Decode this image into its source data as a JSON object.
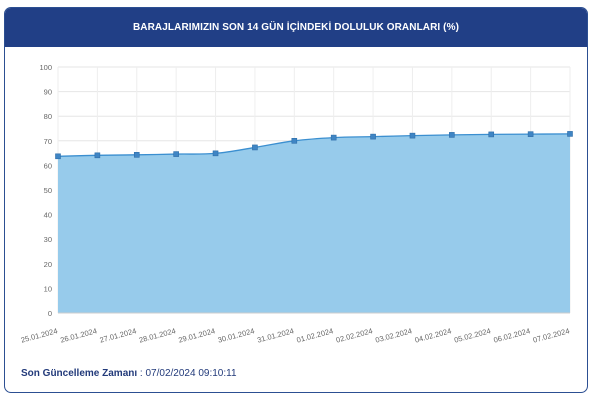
{
  "header": {
    "title": "BARAJLARIMIZIN SON 14 GÜN İÇİNDEKİ DOLULUK ORANLARI (%)"
  },
  "footer": {
    "label": "Son Güncelleme Zamanı",
    "separator": " : ",
    "value": "07/02/2024 09:10:11"
  },
  "chart_data": {
    "type": "area",
    "title": "BARAJLARIMIZIN SON 14 GÜN İÇİNDEKİ DOLULUK ORANLARI (%)",
    "xlabel": "",
    "ylabel": "",
    "ylim": [
      0,
      100
    ],
    "yticks": [
      0,
      10,
      20,
      30,
      40,
      50,
      60,
      70,
      80,
      90,
      100
    ],
    "grid": true,
    "legend": "none",
    "categories": [
      "25.01.2024",
      "26.01.2024",
      "27.01.2024",
      "28.01.2024",
      "29.01.2024",
      "30.01.2024",
      "31.01.2024",
      "01.02.2024",
      "02.02.2024",
      "03.02.2024",
      "04.02.2024",
      "05.02.2024",
      "06.02.2024",
      "07.02.2024"
    ],
    "series": [
      {
        "values": [
          63.7,
          64.1,
          64.3,
          64.6,
          64.9,
          67.3,
          70.0,
          71.3,
          71.7,
          72.1,
          72.4,
          72.6,
          72.7,
          72.8
        ]
      }
    ],
    "colors": {
      "fill": "#97cbeb",
      "line": "#3b8fd0",
      "marker": "#3f85c4",
      "grid": "#e6e6e6"
    }
  }
}
